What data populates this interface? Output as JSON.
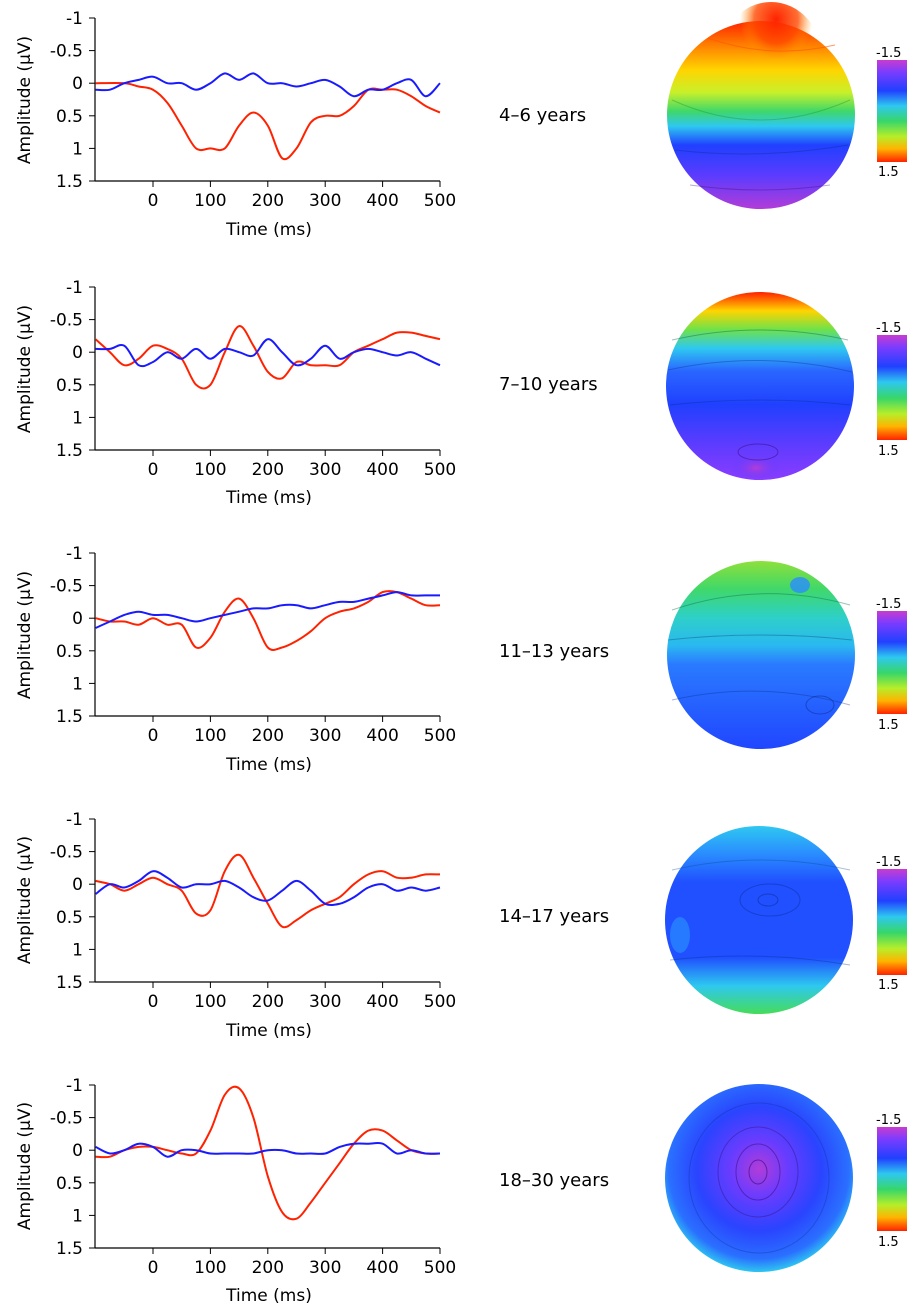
{
  "colors": {
    "red": "#ff2200",
    "blue": "#1a1aff",
    "axis": "#000000"
  },
  "chart_data": [
    {
      "type": "line",
      "group_label": "4–6 years",
      "xlabel": "Time (ms)",
      "ylabel": "Amplitude (µV)",
      "xlim": [
        -100,
        500
      ],
      "ylim": [
        -1,
        1.5
      ],
      "y_inverted": true,
      "xticks": [
        0,
        100,
        200,
        300,
        400,
        500
      ],
      "xtick_labels": [
        "0",
        "100",
        "200",
        "300",
        "400",
        "500"
      ],
      "yticks": [
        -1,
        -0.5,
        0,
        0.5,
        1,
        1.5
      ],
      "ytick_labels": [
        "-1",
        "-0.5",
        "0",
        "0.5",
        "1",
        "1.5"
      ],
      "series": [
        {
          "color": "#ff2200",
          "x": [
            -100,
            -50,
            -25,
            0,
            25,
            50,
            75,
            100,
            125,
            150,
            175,
            200,
            225,
            250,
            275,
            300,
            325,
            350,
            375,
            400,
            425,
            450,
            475,
            500
          ],
          "y": [
            0.0,
            0.0,
            0.05,
            0.1,
            0.3,
            0.65,
            1.0,
            1.0,
            1.0,
            0.65,
            0.45,
            0.65,
            1.15,
            1.0,
            0.6,
            0.5,
            0.5,
            0.35,
            0.1,
            0.1,
            0.1,
            0.2,
            0.35,
            0.45
          ]
        },
        {
          "color": "#1a1aff",
          "x": [
            -100,
            -75,
            -50,
            -25,
            0,
            25,
            50,
            75,
            100,
            125,
            150,
            175,
            200,
            225,
            250,
            275,
            300,
            325,
            350,
            375,
            400,
            425,
            450,
            475,
            500
          ],
          "y": [
            0.1,
            0.1,
            0.0,
            -0.05,
            -0.1,
            0.0,
            0.0,
            0.1,
            0.0,
            -0.15,
            -0.05,
            -0.15,
            0.0,
            0.0,
            0.05,
            0.0,
            -0.05,
            0.05,
            0.2,
            0.1,
            0.1,
            0.0,
            -0.05,
            0.2,
            0.0
          ]
        }
      ]
    },
    {
      "type": "line",
      "group_label": "7–10 years",
      "xlabel": "Time (ms)",
      "ylabel": "Amplitude (µV)",
      "xlim": [
        -100,
        500
      ],
      "ylim": [
        -1,
        1.5
      ],
      "y_inverted": true,
      "xticks": [
        0,
        100,
        200,
        300,
        400,
        500
      ],
      "xtick_labels": [
        "0",
        "100",
        "200",
        "300",
        "400",
        "500"
      ],
      "yticks": [
        -1,
        -0.5,
        0,
        0.5,
        1,
        1.5
      ],
      "ytick_labels": [
        "-1",
        "-0.5",
        "0",
        "0.5",
        "1",
        "1.5"
      ],
      "series": [
        {
          "color": "#ff2200",
          "x": [
            -100,
            -75,
            -50,
            -25,
            0,
            25,
            50,
            75,
            100,
            125,
            150,
            175,
            200,
            225,
            250,
            275,
            300,
            325,
            350,
            375,
            400,
            425,
            450,
            475,
            500
          ],
          "y": [
            -0.2,
            0.0,
            0.2,
            0.1,
            -0.1,
            -0.05,
            0.1,
            0.5,
            0.5,
            0.0,
            -0.4,
            -0.1,
            0.3,
            0.4,
            0.15,
            0.2,
            0.2,
            0.2,
            0.0,
            -0.1,
            -0.2,
            -0.3,
            -0.3,
            -0.25,
            -0.2
          ]
        },
        {
          "color": "#1a1aff",
          "x": [
            -100,
            -75,
            -50,
            -25,
            0,
            25,
            50,
            75,
            100,
            125,
            150,
            175,
            200,
            225,
            250,
            275,
            300,
            325,
            350,
            375,
            400,
            425,
            450,
            475,
            500
          ],
          "y": [
            -0.05,
            -0.05,
            -0.1,
            0.2,
            0.15,
            0.0,
            0.1,
            -0.05,
            0.1,
            -0.05,
            0.0,
            0.05,
            -0.2,
            0.0,
            0.2,
            0.1,
            -0.1,
            0.1,
            0.0,
            -0.05,
            0.0,
            0.05,
            0.0,
            0.1,
            0.2
          ]
        }
      ]
    },
    {
      "type": "line",
      "group_label": "11–13 years",
      "xlabel": "Time (ms)",
      "ylabel": "Amplitude (µV)",
      "xlim": [
        -100,
        500
      ],
      "ylim": [
        -1,
        1.5
      ],
      "y_inverted": true,
      "xticks": [
        0,
        100,
        200,
        300,
        400,
        500
      ],
      "xtick_labels": [
        "0",
        "100",
        "200",
        "300",
        "400",
        "500"
      ],
      "yticks": [
        -1,
        -0.5,
        0,
        0.5,
        1,
        1.5
      ],
      "ytick_labels": [
        "-1",
        "-0.5",
        "0",
        "0.5",
        "1",
        "1.5"
      ],
      "series": [
        {
          "color": "#ff2200",
          "x": [
            -100,
            -75,
            -50,
            -25,
            0,
            25,
            50,
            75,
            100,
            125,
            150,
            175,
            200,
            225,
            250,
            275,
            300,
            325,
            350,
            375,
            400,
            425,
            450,
            475,
            500
          ],
          "y": [
            0.0,
            0.05,
            0.05,
            0.1,
            0.0,
            0.1,
            0.1,
            0.45,
            0.3,
            -0.1,
            -0.3,
            0.0,
            0.45,
            0.45,
            0.35,
            0.2,
            0.0,
            -0.1,
            -0.15,
            -0.25,
            -0.4,
            -0.4,
            -0.3,
            -0.2,
            -0.2
          ]
        },
        {
          "color": "#1a1aff",
          "x": [
            -100,
            -75,
            -50,
            -25,
            0,
            25,
            50,
            75,
            100,
            125,
            150,
            175,
            200,
            225,
            250,
            275,
            300,
            325,
            350,
            375,
            400,
            425,
            450,
            475,
            500
          ],
          "y": [
            0.15,
            0.05,
            -0.05,
            -0.1,
            -0.05,
            -0.05,
            0.0,
            0.05,
            0.0,
            -0.05,
            -0.1,
            -0.15,
            -0.15,
            -0.2,
            -0.2,
            -0.15,
            -0.2,
            -0.25,
            -0.25,
            -0.3,
            -0.35,
            -0.4,
            -0.35,
            -0.35,
            -0.35
          ]
        }
      ]
    },
    {
      "type": "line",
      "group_label": "14–17 years",
      "xlabel": "Time (ms)",
      "ylabel": "Amplitude (µV)",
      "xlim": [
        -100,
        500
      ],
      "ylim": [
        -1,
        1.5
      ],
      "y_inverted": true,
      "xticks": [
        0,
        100,
        200,
        300,
        400,
        500
      ],
      "xtick_labels": [
        "0",
        "100",
        "200",
        "300",
        "400",
        "500"
      ],
      "yticks": [
        -1,
        -0.5,
        0,
        0.5,
        1,
        1.5
      ],
      "ytick_labels": [
        "-1",
        "-0.5",
        "0",
        "0.5",
        "1",
        "1.5"
      ],
      "series": [
        {
          "color": "#ff2200",
          "x": [
            -100,
            -75,
            -50,
            -25,
            0,
            25,
            50,
            75,
            100,
            125,
            150,
            175,
            200,
            225,
            250,
            275,
            300,
            325,
            350,
            375,
            400,
            425,
            450,
            475,
            500
          ],
          "y": [
            -0.05,
            0.0,
            0.1,
            0.0,
            -0.1,
            0.0,
            0.1,
            0.45,
            0.4,
            -0.2,
            -0.45,
            -0.1,
            0.3,
            0.65,
            0.55,
            0.4,
            0.3,
            0.2,
            0.0,
            -0.15,
            -0.2,
            -0.1,
            -0.1,
            -0.15,
            -0.15
          ]
        },
        {
          "color": "#1a1aff",
          "x": [
            -100,
            -75,
            -50,
            -25,
            0,
            25,
            50,
            75,
            100,
            125,
            150,
            175,
            200,
            225,
            250,
            275,
            300,
            325,
            350,
            375,
            400,
            425,
            450,
            475,
            500
          ],
          "y": [
            0.15,
            0.0,
            0.05,
            -0.05,
            -0.2,
            -0.1,
            0.05,
            0.0,
            0.0,
            -0.05,
            0.05,
            0.2,
            0.25,
            0.1,
            -0.05,
            0.1,
            0.3,
            0.3,
            0.2,
            0.05,
            0.0,
            0.1,
            0.05,
            0.1,
            0.05
          ]
        }
      ]
    },
    {
      "type": "line",
      "group_label": "18–30 years",
      "xlabel": "Time (ms)",
      "ylabel": "Amplitude (µV)",
      "xlim": [
        -100,
        500
      ],
      "ylim": [
        -1,
        1.5
      ],
      "y_inverted": true,
      "xticks": [
        0,
        100,
        200,
        300,
        400,
        500
      ],
      "xtick_labels": [
        "0",
        "100",
        "200",
        "300",
        "400",
        "500"
      ],
      "yticks": [
        -1,
        -0.5,
        0,
        0.5,
        1,
        1.5
      ],
      "ytick_labels": [
        "-1",
        "-0.5",
        "0",
        "0.5",
        "1",
        "1.5"
      ],
      "series": [
        {
          "color": "#ff2200",
          "x": [
            -100,
            -75,
            -50,
            -25,
            0,
            25,
            50,
            75,
            100,
            125,
            150,
            175,
            200,
            225,
            250,
            275,
            300,
            325,
            350,
            375,
            400,
            425,
            450,
            475,
            500
          ],
          "y": [
            0.1,
            0.1,
            0.0,
            -0.05,
            -0.05,
            0.0,
            0.05,
            0.05,
            -0.3,
            -0.85,
            -0.95,
            -0.5,
            0.4,
            0.95,
            1.05,
            0.8,
            0.5,
            0.2,
            -0.1,
            -0.3,
            -0.3,
            -0.15,
            0.0,
            0.05,
            0.05
          ]
        },
        {
          "color": "#1a1aff",
          "x": [
            -100,
            -75,
            -50,
            -25,
            0,
            25,
            50,
            75,
            100,
            125,
            150,
            175,
            200,
            225,
            250,
            275,
            300,
            325,
            350,
            375,
            400,
            425,
            450,
            475,
            500
          ],
          "y": [
            -0.05,
            0.05,
            0.0,
            -0.1,
            -0.05,
            0.1,
            0.0,
            0.0,
            0.05,
            0.05,
            0.05,
            0.05,
            0.0,
            0.0,
            0.05,
            0.05,
            0.05,
            -0.05,
            -0.1,
            -0.1,
            -0.1,
            0.05,
            0.0,
            0.05,
            0.05
          ]
        }
      ]
    }
  ],
  "colorbar": {
    "top_label": "-1.5",
    "bottom_label": "1.5"
  },
  "topomaps": [
    {
      "group": "4–6 years",
      "pattern": "frontal-red"
    },
    {
      "group": "7–10 years",
      "pattern": "frontal-red-band"
    },
    {
      "group": "11–13 years",
      "pattern": "frontal-green"
    },
    {
      "group": "14–17 years",
      "pattern": "blue-dominant"
    },
    {
      "group": "18–30 years",
      "pattern": "central-purple"
    }
  ]
}
